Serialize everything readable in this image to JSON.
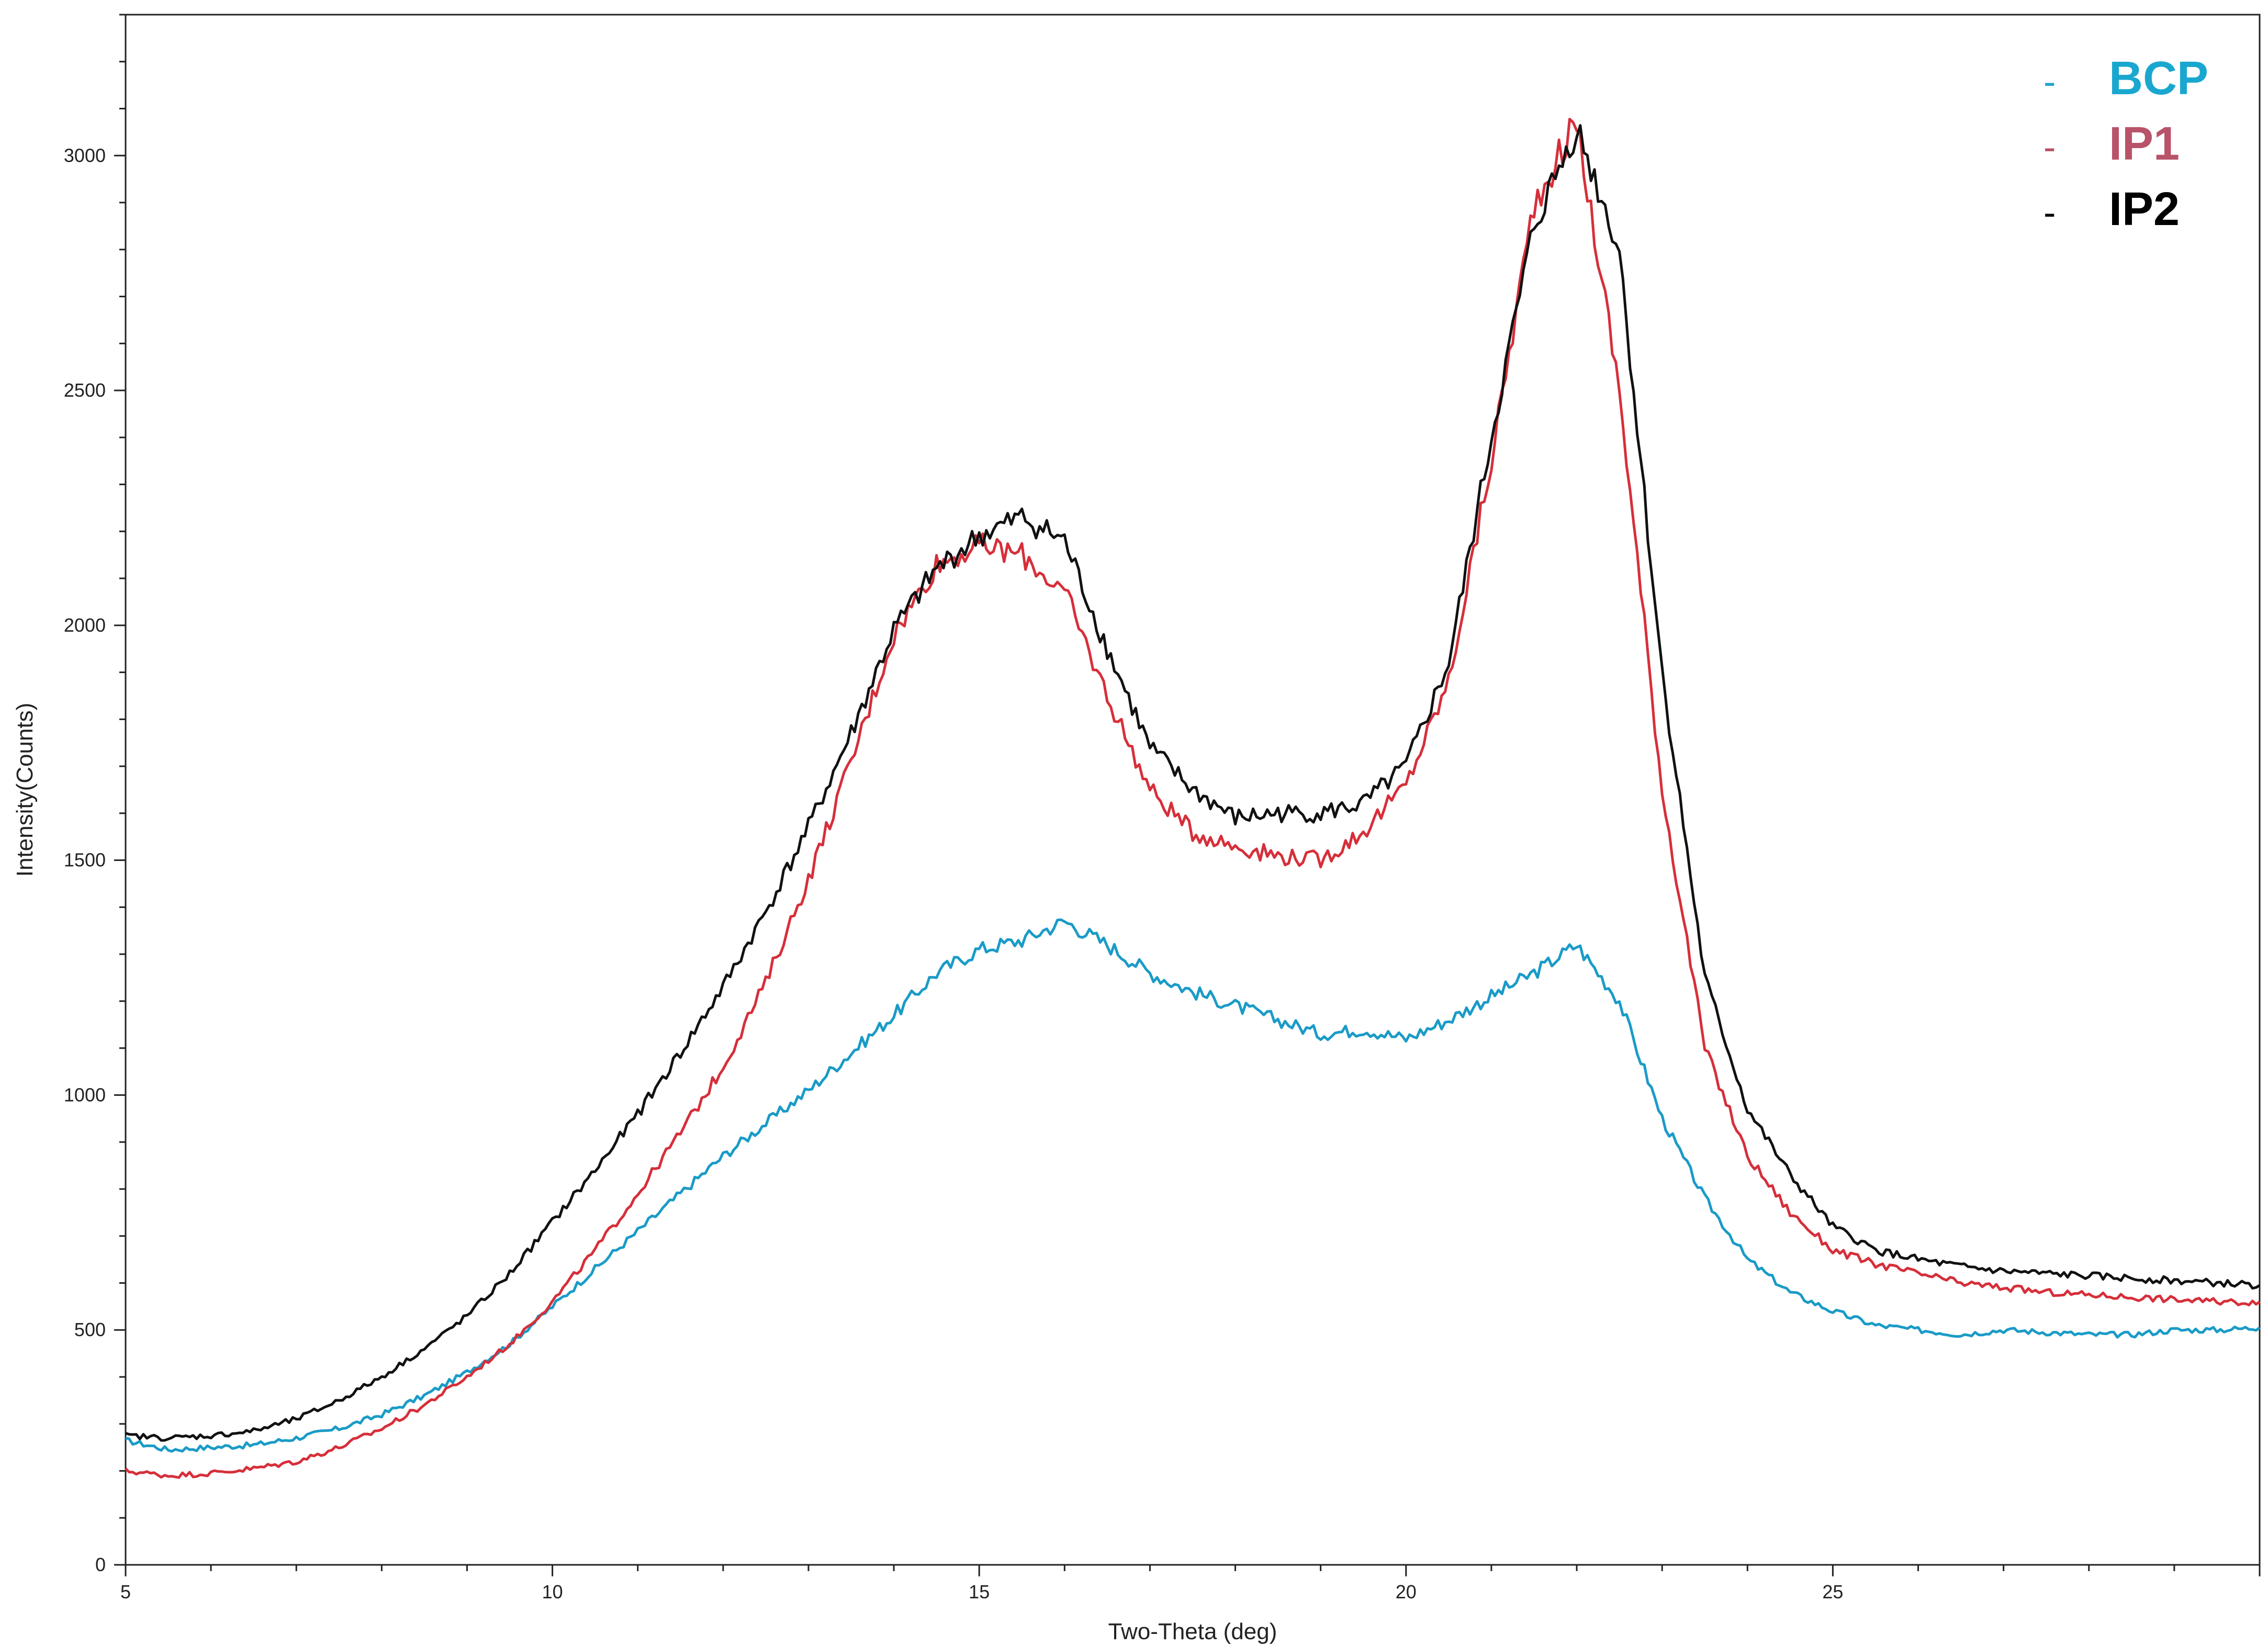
{
  "chart_data": {
    "type": "line",
    "title": "",
    "xlabel": "Two-Theta (deg)",
    "ylabel": "Intensity(Counts)",
    "xlim": [
      5,
      30
    ],
    "ylim": [
      0,
      3300
    ],
    "x_ticks": [
      "5",
      "10",
      "15",
      "20",
      "25"
    ],
    "y_ticks": [
      "0",
      "500",
      "1000",
      "1500",
      "2000",
      "2500",
      "3000"
    ],
    "grid": false,
    "legend_position": "top-right",
    "x": [
      5.0,
      5.5,
      6.0,
      6.5,
      7.0,
      7.5,
      8.0,
      8.5,
      9.0,
      9.5,
      10.0,
      10.5,
      11.0,
      11.5,
      12.0,
      12.5,
      13.0,
      13.5,
      14.0,
      14.5,
      15.0,
      15.5,
      16.0,
      16.5,
      17.0,
      17.5,
      18.0,
      18.5,
      19.0,
      19.5,
      20.0,
      20.5,
      21.0,
      21.5,
      22.0,
      22.5,
      23.0,
      23.5,
      24.0,
      24.5,
      25.0,
      25.5,
      26.0,
      26.5,
      27.0,
      27.5,
      28.0,
      28.5,
      29.0,
      29.5,
      30.0
    ],
    "series": [
      {
        "name": "BCP",
        "color": "#1a9bc7",
        "values": [
          265,
          245,
          250,
          255,
          270,
          290,
          320,
          360,
          410,
          470,
          550,
          630,
          710,
          790,
          870,
          940,
          1010,
          1090,
          1170,
          1260,
          1310,
          1330,
          1370,
          1320,
          1260,
          1220,
          1190,
          1160,
          1130,
          1140,
          1120,
          1160,
          1210,
          1260,
          1320,
          1200,
          950,
          780,
          650,
          580,
          540,
          510,
          500,
          490,
          500,
          495,
          490,
          490,
          500,
          500,
          505
        ]
      },
      {
        "name": "IP1",
        "color": "#d62f3a",
        "values": [
          200,
          190,
          195,
          205,
          220,
          250,
          290,
          340,
          400,
          470,
          560,
          670,
          790,
          920,
          1060,
          1240,
          1460,
          1710,
          1980,
          2130,
          2170,
          2150,
          2070,
          1850,
          1650,
          1560,
          1530,
          1510,
          1500,
          1560,
          1660,
          1880,
          2350,
          2900,
          3070,
          2500,
          1650,
          1100,
          870,
          750,
          670,
          640,
          620,
          600,
          590,
          580,
          575,
          570,
          565,
          560,
          560
        ]
      },
      {
        "name": "IP2",
        "color": "#111111",
        "values": [
          275,
          270,
          275,
          285,
          310,
          350,
          400,
          460,
          530,
          620,
          730,
          840,
          960,
          1090,
          1230,
          1390,
          1570,
          1770,
          1990,
          2120,
          2190,
          2230,
          2180,
          1950,
          1740,
          1650,
          1590,
          1600,
          1600,
          1620,
          1700,
          1920,
          2400,
          2850,
          3060,
          2800,
          1900,
          1250,
          970,
          830,
          720,
          670,
          650,
          635,
          625,
          620,
          615,
          610,
          605,
          600,
          595
        ]
      }
    ]
  },
  "legend": [
    {
      "marker": "-",
      "label": "BCP",
      "color": "#1aa7cf"
    },
    {
      "marker": "-",
      "label": "IP1",
      "color": "#b8536a"
    },
    {
      "marker": "-",
      "label": "IP2",
      "color": "#000000"
    }
  ]
}
